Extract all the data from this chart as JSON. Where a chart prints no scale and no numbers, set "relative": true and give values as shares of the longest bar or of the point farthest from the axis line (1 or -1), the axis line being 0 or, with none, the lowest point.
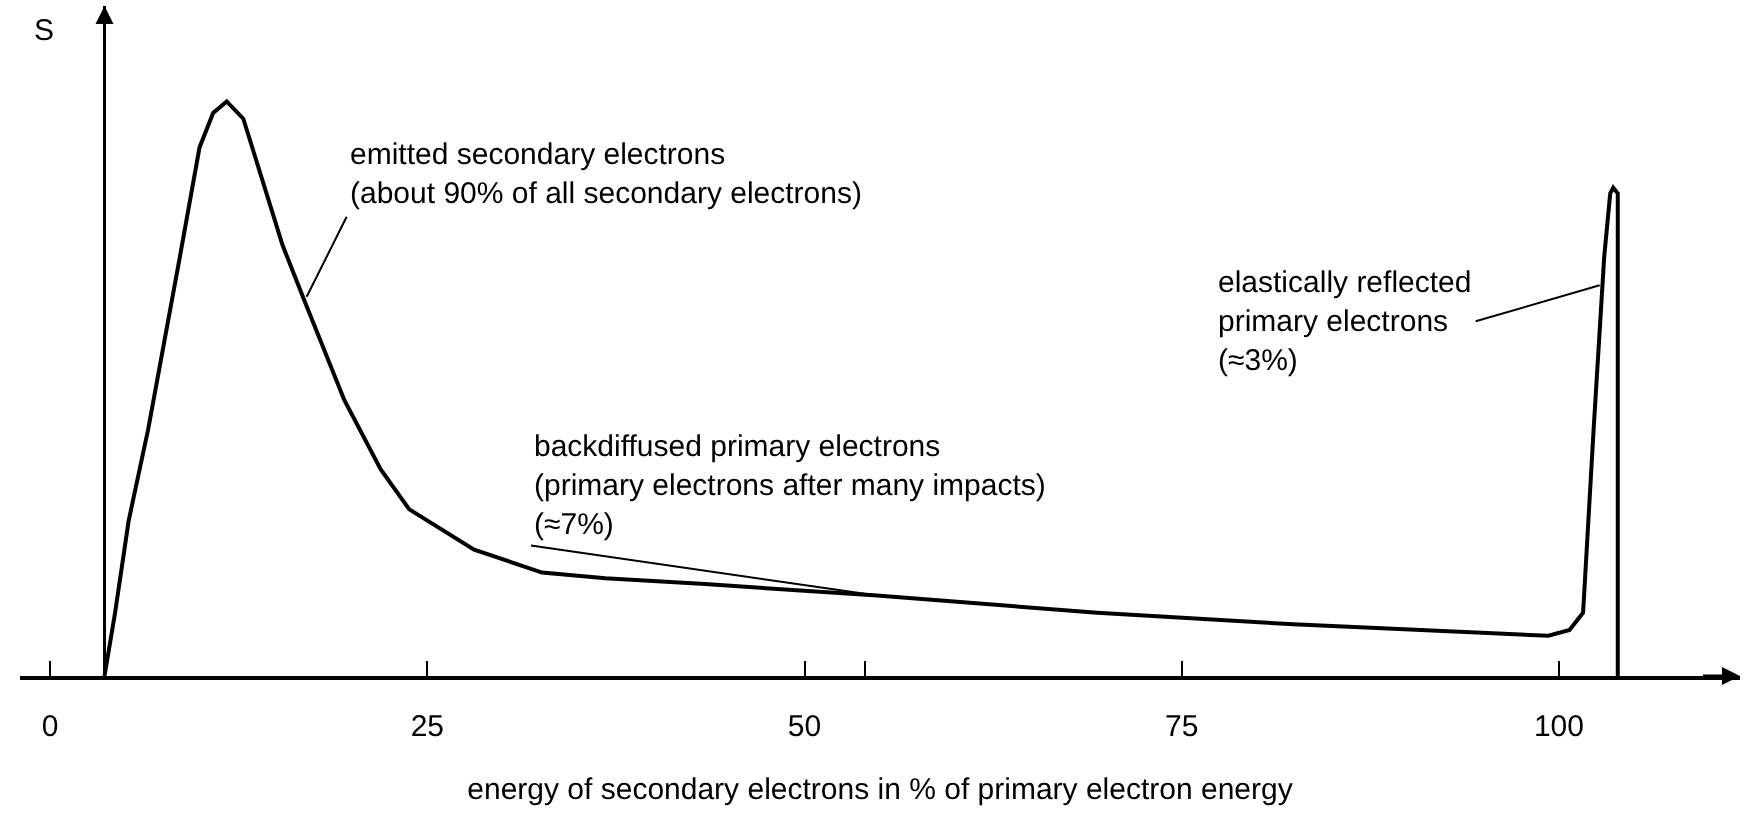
{
  "chart_data": {
    "type": "line",
    "relative": true,
    "xlabel": "energy of secondary electrons in % of primary electron energy",
    "ylabel": "S",
    "x": [
      3.6,
      4.3,
      5.2,
      6.5,
      8.6,
      9.9,
      10.8,
      11.7,
      12.8,
      14.1,
      15.4,
      16.9,
      19.5,
      21.9,
      23.8,
      28.1,
      32.6,
      36.8,
      43.4,
      54.8,
      69.4,
      82.4,
      99.3,
      100.7,
      101.6,
      102.3,
      103.0,
      103.4,
      103.6,
      103.9,
      103.9
    ],
    "series": [
      {
        "color": "#000000",
        "values": [
          0,
          0.11,
          0.27,
          0.43,
          0.73,
          0.92,
          0.98,
          1.0,
          0.97,
          0.86,
          0.75,
          0.65,
          0.48,
          0.36,
          0.29,
          0.22,
          0.18,
          0.17,
          0.16,
          0.14,
          0.11,
          0.09,
          0.07,
          0.08,
          0.11,
          0.43,
          0.73,
          0.84,
          0.85,
          0.84,
          0
        ]
      }
    ],
    "xlim": [
      -2,
      112
    ],
    "xticks": [
      0,
      25,
      50,
      75,
      100,
      {
        "value": 54,
        "label": null
      }
    ],
    "annotations": [
      {
        "text": "emitted secondary electrons\n(about 90% of all secondary electrons)",
        "x": 17,
        "y": 0.66
      },
      {
        "text": "backdiffused primary electrons\n(primary electrons after many impacts)\n(≈7%)",
        "x": 54.8,
        "y": 0.14
      },
      {
        "text": "elastically reflected\nprimary electrons\n(≈3%)",
        "x": 102.7,
        "y": 0.68
      }
    ],
    "ref_lines": [
      {
        "axis": "x",
        "value": 3.6,
        "color": "#000000"
      }
    ],
    "grid": false,
    "legend": false,
    "marker": "none",
    "line_style": "solid"
  }
}
